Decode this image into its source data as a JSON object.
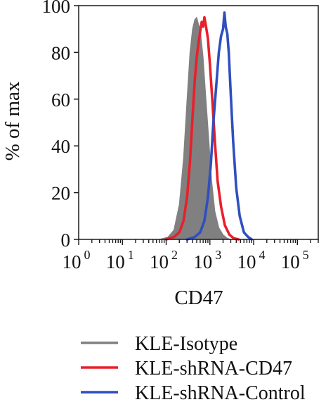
{
  "chart_data": {
    "type": "area",
    "xscale": "log",
    "xlim": [
      1,
      300000
    ],
    "ylim": [
      0,
      100
    ],
    "xlabel": "CD47",
    "ylabel": "% of max",
    "yticks": [
      0,
      20,
      40,
      60,
      80,
      100
    ],
    "xticks": [
      {
        "base": "10",
        "exp": "0",
        "value": 1
      },
      {
        "base": "10",
        "exp": "1",
        "value": 10
      },
      {
        "base": "10",
        "exp": "2",
        "value": 100
      },
      {
        "base": "10",
        "exp": "3",
        "value": 1000
      },
      {
        "base": "10",
        "exp": "4",
        "value": 10000
      },
      {
        "base": "10",
        "exp": "5",
        "value": 100000
      }
    ],
    "legend_position": "bottom",
    "series": [
      {
        "name": "KLE-Isotype",
        "style": "filled",
        "color": "#808080",
        "x": [
          70,
          110,
          150,
          200,
          250,
          300,
          350,
          400,
          450,
          500,
          550,
          600,
          700,
          800,
          950,
          1100,
          1300,
          1600,
          2000,
          2500,
          3000
        ],
        "y": [
          0,
          1,
          4,
          15,
          35,
          60,
          80,
          90,
          94,
          95,
          92,
          90,
          78,
          62,
          42,
          25,
          12,
          5,
          2,
          0.5,
          0
        ]
      },
      {
        "name": "KLE-shRNA-CD47",
        "style": "line",
        "color": "#e8202a",
        "x": [
          100,
          150,
          200,
          250,
          300,
          350,
          400,
          450,
          500,
          550,
          600,
          650,
          700,
          750,
          800,
          900,
          1000,
          1150,
          1300,
          1500,
          1800,
          2200,
          2800,
          3500,
          4500
        ],
        "y": [
          0,
          1,
          3,
          8,
          18,
          33,
          52,
          68,
          78,
          84,
          89,
          93,
          91,
          95,
          92,
          86,
          75,
          58,
          42,
          25,
          14,
          6,
          2,
          0.5,
          0
        ]
      },
      {
        "name": "KLE-shRNA-Control",
        "style": "line",
        "color": "#2f4fbf",
        "x": [
          300,
          450,
          600,
          750,
          900,
          1050,
          1200,
          1400,
          1600,
          1800,
          2000,
          2150,
          2300,
          2500,
          2700,
          3000,
          3400,
          4000,
          4800,
          6000,
          7500,
          9000
        ],
        "y": [
          0,
          1,
          3,
          8,
          18,
          32,
          50,
          66,
          80,
          87,
          90,
          97,
          91,
          88,
          80,
          62,
          42,
          22,
          10,
          3,
          1,
          0
        ]
      }
    ]
  }
}
